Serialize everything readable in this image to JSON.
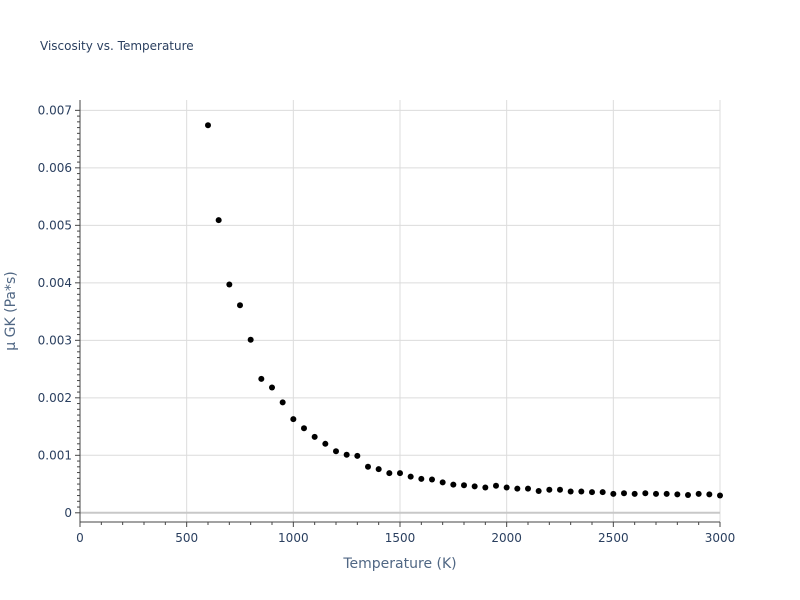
{
  "chart_data": {
    "type": "scatter",
    "title": "Viscosity vs. Temperature",
    "xlabel": "Temperature (K)",
    "ylabel": "μ GK (Pa*s)",
    "xlim": [
      0,
      3000
    ],
    "ylim": [
      -0.00016,
      0.00718
    ],
    "x_ticks": [
      0,
      500,
      1000,
      1500,
      2000,
      2500,
      3000
    ],
    "x_tick_labels": [
      "0",
      "500",
      "1000",
      "1500",
      "2000",
      "2500",
      "3000"
    ],
    "y_ticks": [
      0,
      0.001,
      0.002,
      0.003,
      0.004,
      0.005,
      0.006,
      0.007
    ],
    "y_tick_labels": [
      "0",
      "0.001",
      "0.002",
      "0.003",
      "0.004",
      "0.005",
      "0.006",
      "0.007"
    ],
    "grid": true,
    "marker_color": "#000000",
    "series": [
      {
        "x": [
          600,
          650,
          700,
          750,
          800,
          850,
          900,
          950,
          1000,
          1050,
          1100,
          1150,
          1200,
          1250,
          1300,
          1350,
          1400,
          1450,
          1500,
          1550,
          1600,
          1650,
          1700,
          1750,
          1800,
          1850,
          1900,
          1950,
          2000,
          2050,
          2100,
          2150,
          2200,
          2250,
          2300,
          2350,
          2400,
          2450,
          2500,
          2550,
          2600,
          2650,
          2700,
          2750,
          2800,
          2850,
          2900,
          2950,
          3000
        ],
        "values": [
          0.00674,
          0.00509,
          0.00397,
          0.00361,
          0.00301,
          0.00233,
          0.00218,
          0.00192,
          0.00163,
          0.00147,
          0.00132,
          0.0012,
          0.00107,
          0.00101,
          0.00099,
          0.0008,
          0.00076,
          0.00069,
          0.00069,
          0.00063,
          0.00059,
          0.00058,
          0.00053,
          0.00049,
          0.00048,
          0.00046,
          0.00044,
          0.00047,
          0.00044,
          0.00042,
          0.00042,
          0.00038,
          0.0004,
          0.0004,
          0.00037,
          0.00037,
          0.00036,
          0.00036,
          0.00033,
          0.00034,
          0.00033,
          0.00034,
          0.00033,
          0.00033,
          0.00032,
          0.00031,
          0.00033,
          0.00032,
          0.0003
        ]
      }
    ]
  }
}
